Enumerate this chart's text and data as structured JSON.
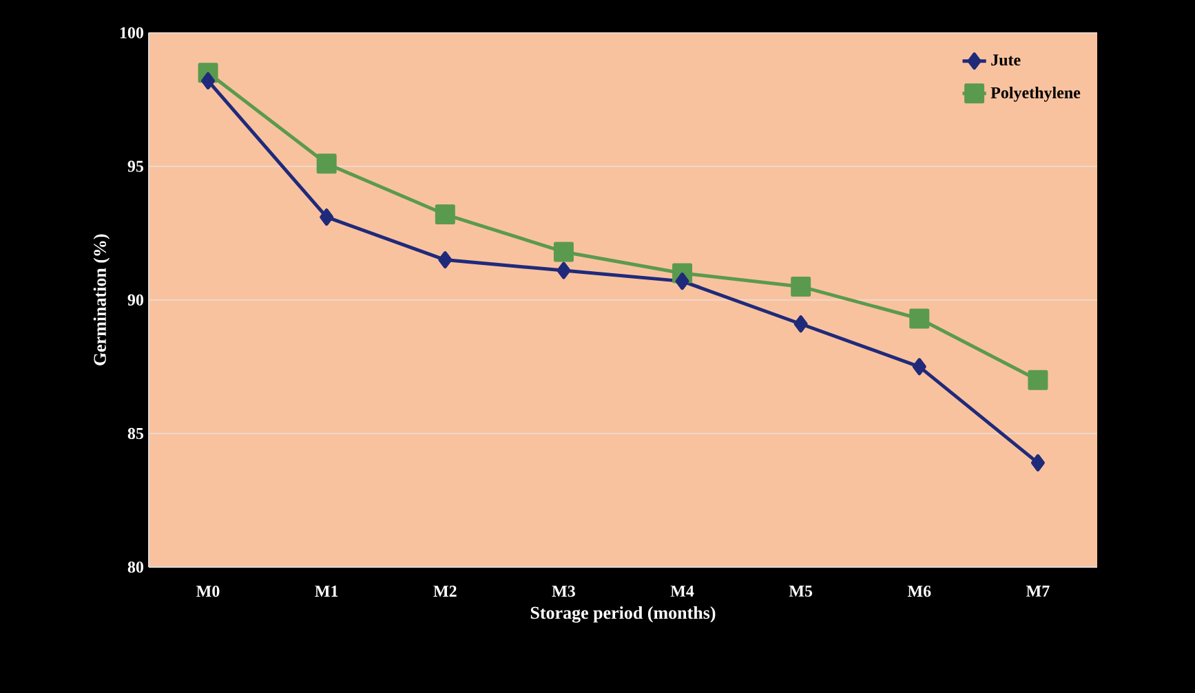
{
  "chart_data": {
    "type": "line",
    "xlabel": "Storage period (months)",
    "ylabel": "Germination (%)",
    "categories": [
      "M0",
      "M1",
      "M2",
      "M3",
      "M4",
      "M5",
      "M6",
      "M7"
    ],
    "series": [
      {
        "name": "Jute",
        "color": "#1f2a7a",
        "marker": "diamond",
        "values": [
          98.2,
          93.1,
          91.5,
          91.1,
          90.7,
          89.1,
          87.5,
          83.9
        ]
      },
      {
        "name": "Polyethylene",
        "color": "#5a9a4f",
        "marker": "square",
        "values": [
          98.5,
          95.1,
          93.2,
          91.8,
          91.0,
          90.5,
          89.3,
          87.0
        ]
      }
    ],
    "ylim": [
      80,
      100
    ],
    "yticks": [
      80,
      85,
      90,
      95,
      100
    ],
    "grid": "y",
    "legend": "top right"
  }
}
